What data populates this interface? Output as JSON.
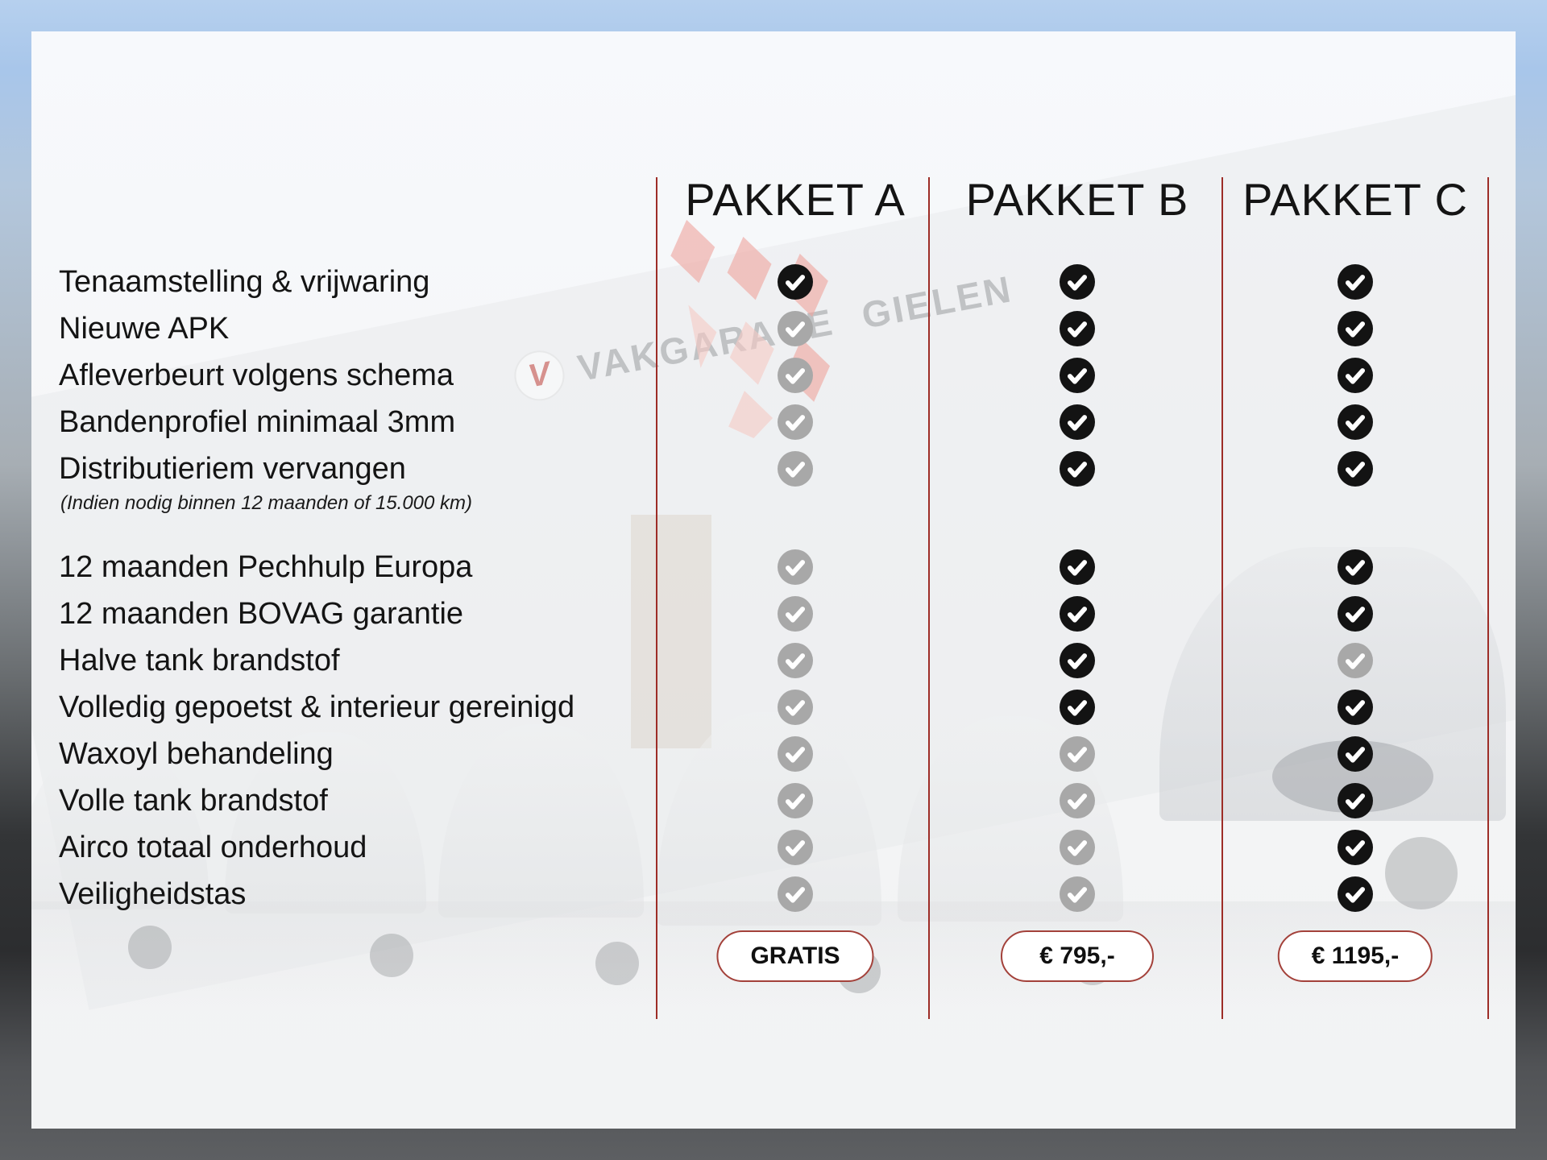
{
  "packages": [
    {
      "label": "PAKKET A",
      "price": "GRATIS"
    },
    {
      "label": "PAKKET B",
      "price": "€ 795,-"
    },
    {
      "label": "PAKKET C",
      "price": "€ 1195,-"
    }
  ],
  "features": [
    {
      "label": "Tenaamstelling & vrijwaring",
      "included": [
        true,
        true,
        true
      ]
    },
    {
      "label": "Nieuwe APK",
      "included": [
        false,
        true,
        true
      ]
    },
    {
      "label": "Afleverbeurt volgens schema",
      "included": [
        false,
        true,
        true
      ]
    },
    {
      "label": "Bandenprofiel minimaal 3mm",
      "included": [
        false,
        true,
        true
      ]
    },
    {
      "label": "Distributieriem vervangen",
      "note": "(Indien nodig binnen 12 maanden of 15.000 km)",
      "included": [
        false,
        true,
        true
      ]
    },
    {
      "label": "12 maanden Pechhulp Europa",
      "included": [
        false,
        true,
        true
      ]
    },
    {
      "label": "12 maanden BOVAG garantie",
      "included": [
        false,
        true,
        true
      ]
    },
    {
      "label": "Halve tank brandstof",
      "included": [
        false,
        true,
        false
      ]
    },
    {
      "label": "Volledig gepoetst & interieur gereinigd",
      "included": [
        false,
        true,
        true
      ]
    },
    {
      "label": "Waxoyl behandeling",
      "included": [
        false,
        false,
        true
      ]
    },
    {
      "label": "Volle tank brandstof",
      "included": [
        false,
        false,
        true
      ]
    },
    {
      "label": "Airco totaal onderhoud",
      "included": [
        false,
        false,
        true
      ]
    },
    {
      "label": "Veiligheidstas",
      "included": [
        false,
        false,
        true
      ]
    }
  ],
  "background": {
    "sign_text": "VAKGARAGE GIELEN",
    "logo_letter": "V"
  },
  "colors": {
    "divider_red": "#9d2d27",
    "button_border": "#a3413a",
    "check_included": "#131313",
    "check_excluded": "#a8a8a8",
    "text": "#141414"
  }
}
